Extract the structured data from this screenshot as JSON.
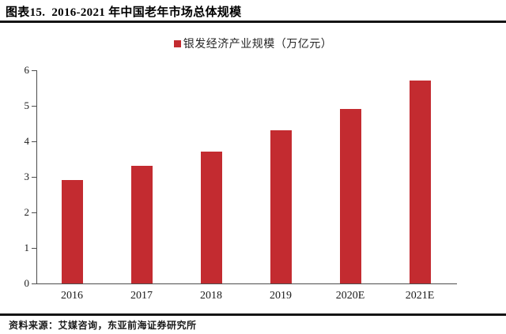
{
  "header": {
    "title": "图表15.  2016-2021 年中国老年市场总体规模"
  },
  "chart_data": {
    "type": "bar",
    "title": "2016-2021 年中国老年市场总体规模",
    "legend": "银发经济产业规模（万亿元）",
    "legend_position": "top-center",
    "categories": [
      "2016",
      "2017",
      "2018",
      "2019",
      "2020E",
      "2021E"
    ],
    "values": [
      2.9,
      3.3,
      3.7,
      4.3,
      4.9,
      5.7
    ],
    "xlabel": "",
    "ylabel": "",
    "ylim": [
      0,
      6
    ],
    "ytick_step": 1,
    "yticks": [
      0,
      1,
      2,
      3,
      4,
      5,
      6
    ],
    "grid": false,
    "bar_color": "#c32b30",
    "axis_color": "#4d4d4d"
  },
  "footer": {
    "source": "资料来源：艾媒咨询，东亚前海证券研究所"
  }
}
